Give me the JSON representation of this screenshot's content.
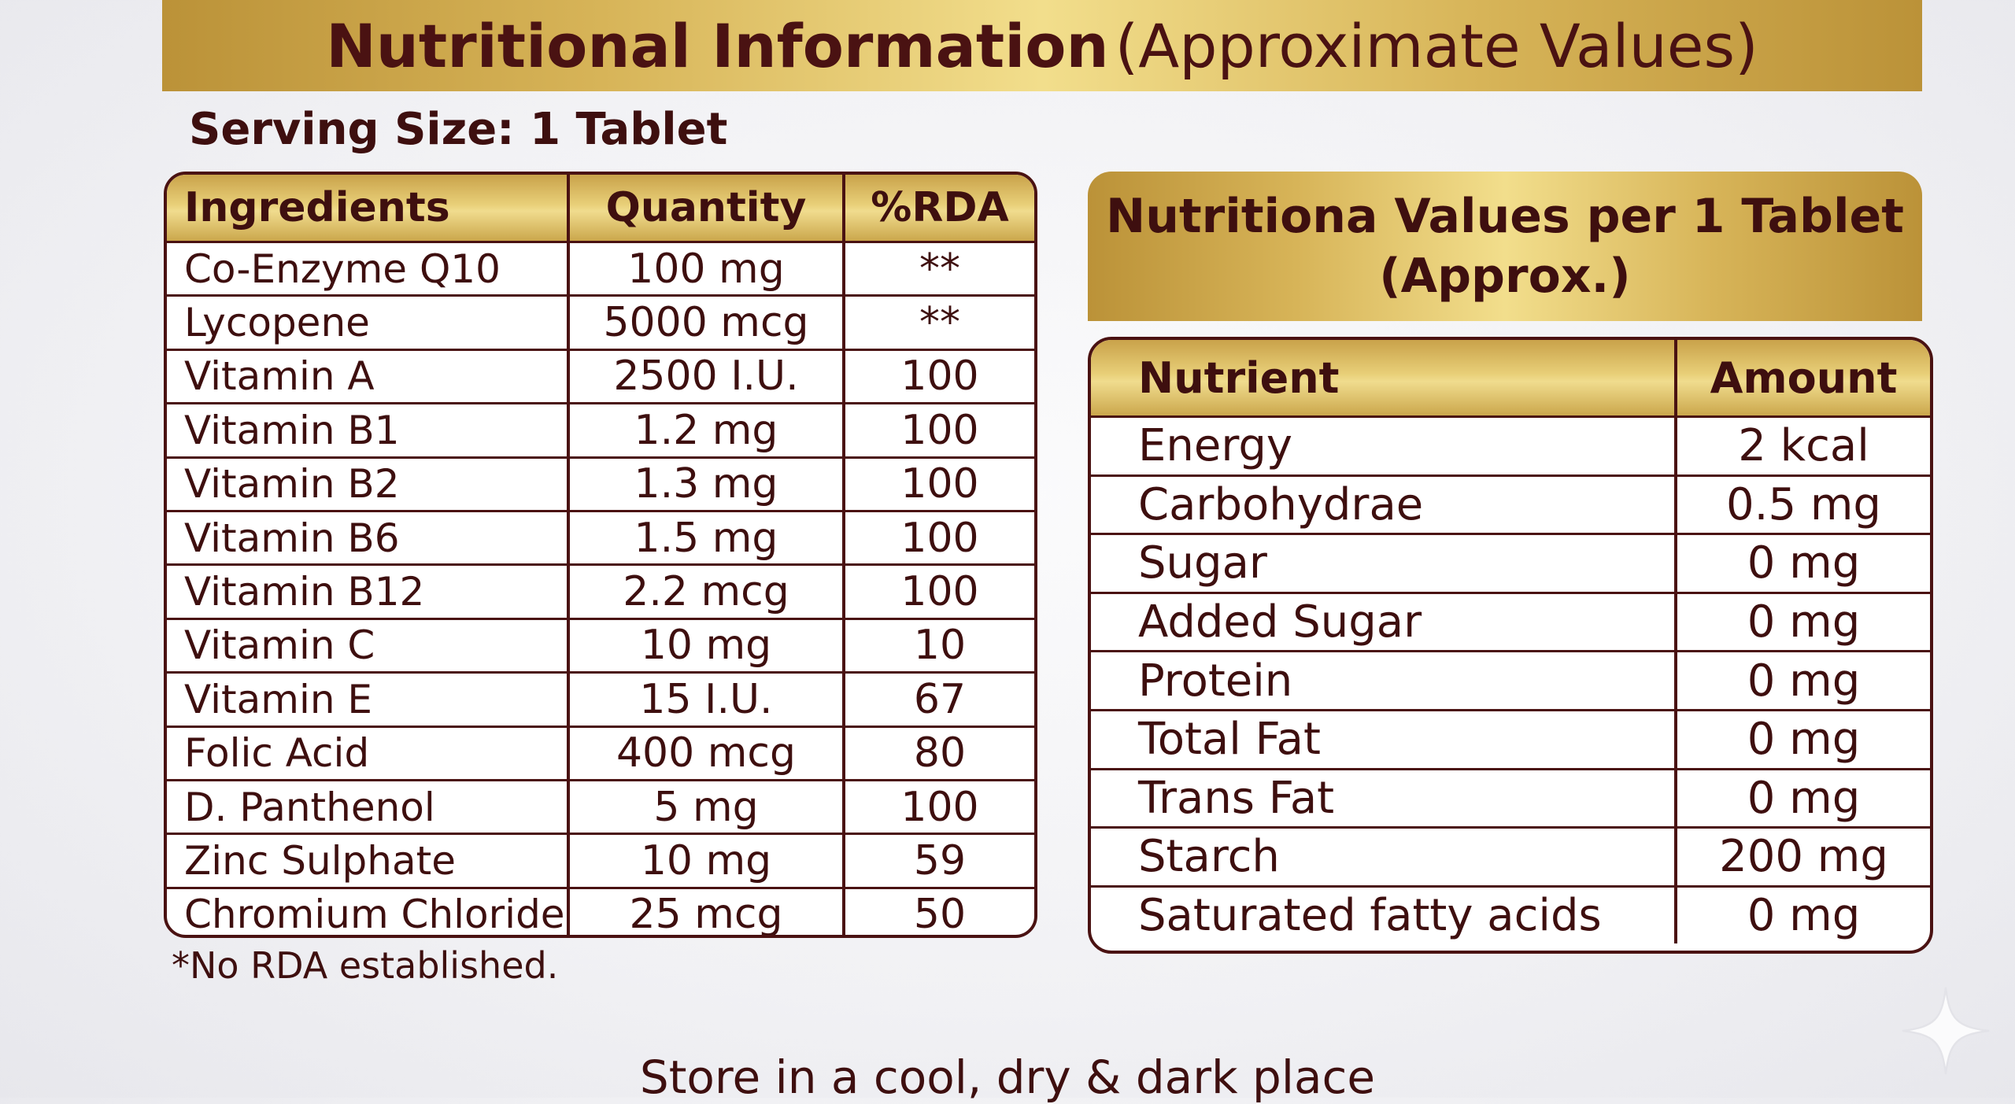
{
  "title": {
    "bold": "Nutritional Information",
    "light": "(Approximate Values)"
  },
  "serving_size": "Serving Size: 1 Tablet",
  "ingredients_table": {
    "headers": [
      "Ingredients",
      "Quantity",
      "%RDA"
    ],
    "rows": [
      [
        "Co-Enzyme Q10",
        "100 mg",
        "**"
      ],
      [
        "Lycopene",
        "5000 mcg",
        "**"
      ],
      [
        "Vitamin A",
        "2500 I.U.",
        "100"
      ],
      [
        "Vitamin B1",
        "1.2 mg",
        "100"
      ],
      [
        "Vitamin B2",
        "1.3 mg",
        "100"
      ],
      [
        "Vitamin B6",
        "1.5 mg",
        "100"
      ],
      [
        "Vitamin B12",
        "2.2 mcg",
        "100"
      ],
      [
        "Vitamin C",
        "10 mg",
        "10"
      ],
      [
        "Vitamin E",
        "15 I.U.",
        "67"
      ],
      [
        "Folic Acid",
        "400 mcg",
        "80"
      ],
      [
        "D. Panthenol",
        "5 mg",
        "100"
      ],
      [
        "Zinc Sulphate",
        "10 mg",
        "59"
      ],
      [
        "Chromium Chloride",
        "25 mcg",
        "50"
      ]
    ]
  },
  "footnote": "*No RDA established.",
  "nutrition_banner": {
    "line1": "Nutritiona Values per 1 Tablet",
    "line2": "(Approx.)"
  },
  "nutrition_table": {
    "headers": [
      "Nutrient",
      "Amount"
    ],
    "rows": [
      [
        "Energy",
        "2 kcal"
      ],
      [
        "Carbohydrae",
        "0.5 mg"
      ],
      [
        "Sugar",
        "0 mg"
      ],
      [
        "Added Sugar",
        "0 mg"
      ],
      [
        "Protein",
        "0 mg"
      ],
      [
        "Total Fat",
        "0 mg"
      ],
      [
        "Trans Fat",
        "0 mg"
      ],
      [
        "Starch",
        "200 mg"
      ],
      [
        "Saturated fatty acids",
        "0 mg"
      ]
    ]
  },
  "store_note": "Store in a cool, dry & dark place",
  "colors": {
    "accent_gold": "#e3c56c",
    "text_maroon": "#4a1212"
  },
  "icons": {
    "corner": "sparkle-icon"
  }
}
